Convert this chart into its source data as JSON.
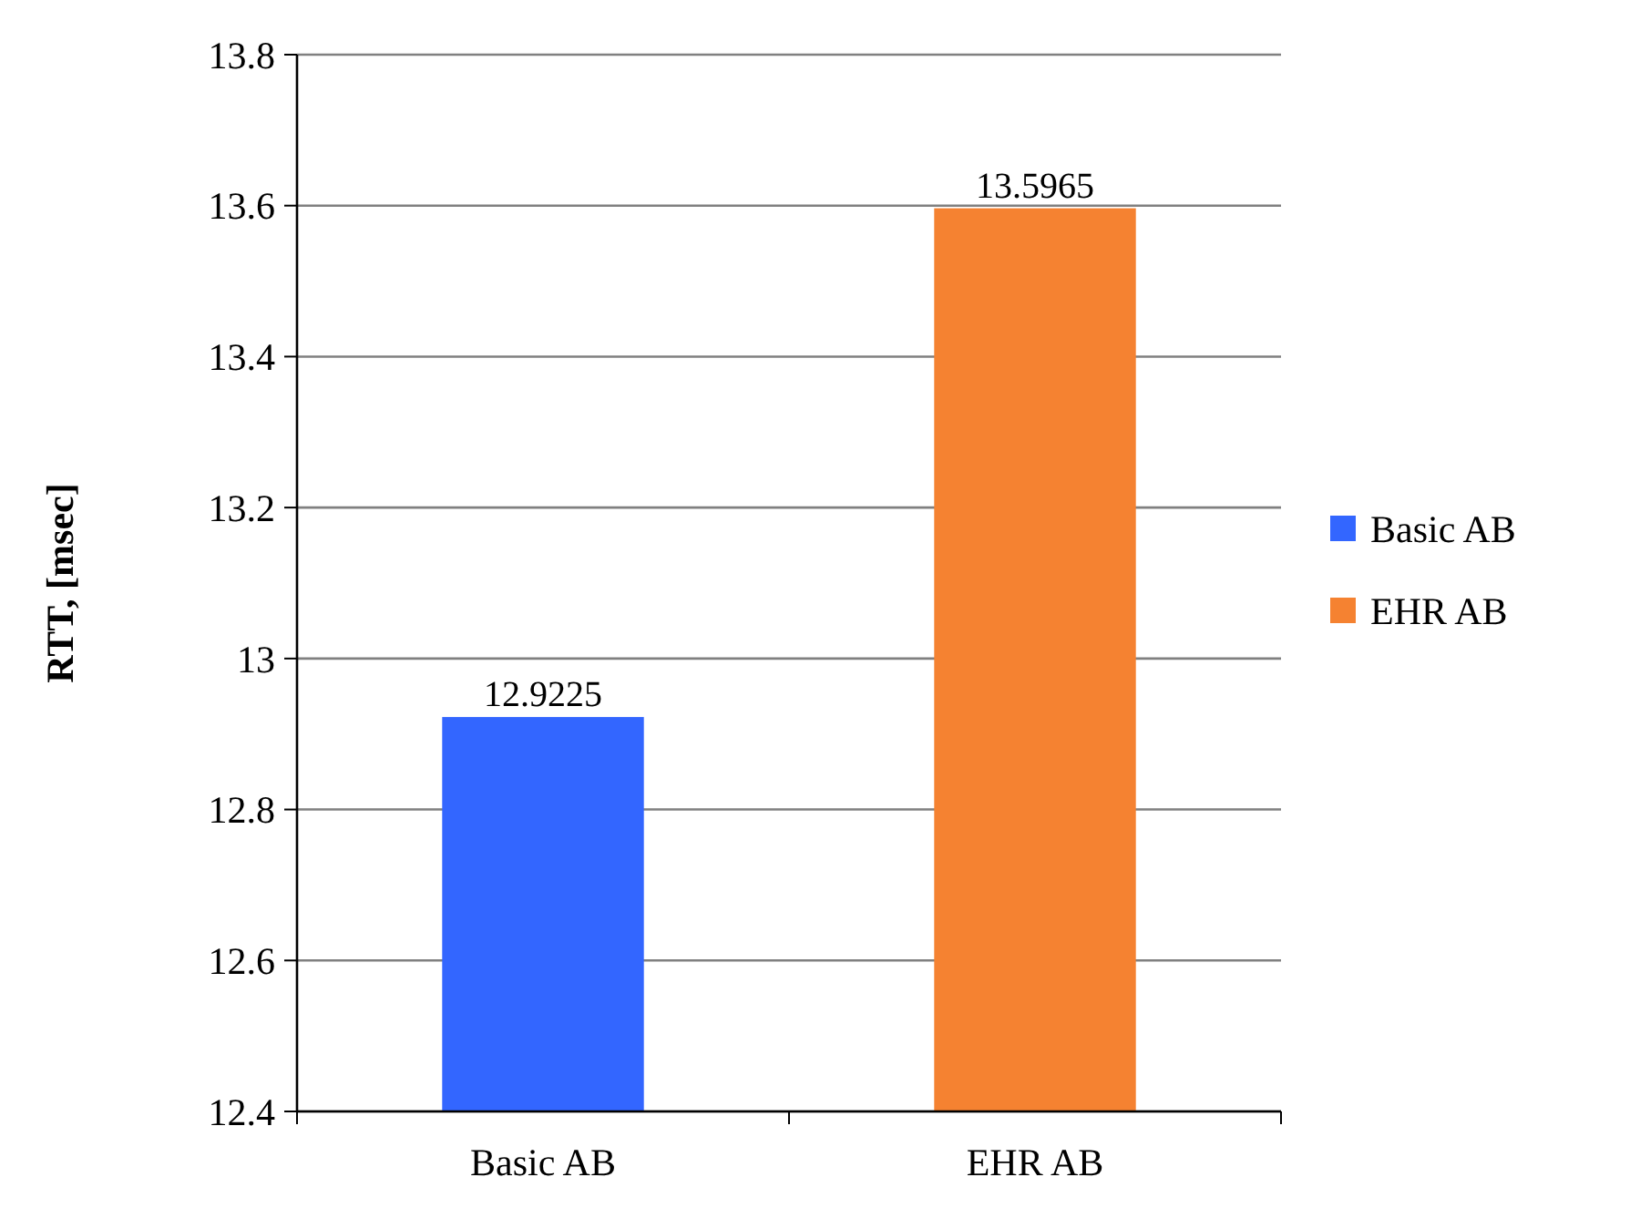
{
  "chart_data": {
    "type": "bar",
    "ylabel": "RTT, [msec]",
    "categories": [
      "Basic AB",
      "EHR AB"
    ],
    "series": [
      {
        "name": "Basic AB",
        "color": "#3366ff",
        "values": [
          12.9225,
          null
        ]
      },
      {
        "name": "EHR AB",
        "color": "#f58231",
        "values": [
          null,
          13.5965
        ]
      }
    ],
    "ylim": [
      12.4,
      13.8
    ],
    "yticks": [
      12.4,
      12.6,
      12.8,
      13,
      13.2,
      13.4,
      13.6,
      13.8
    ],
    "grid": "y",
    "legend": "right",
    "data_labels": true
  }
}
